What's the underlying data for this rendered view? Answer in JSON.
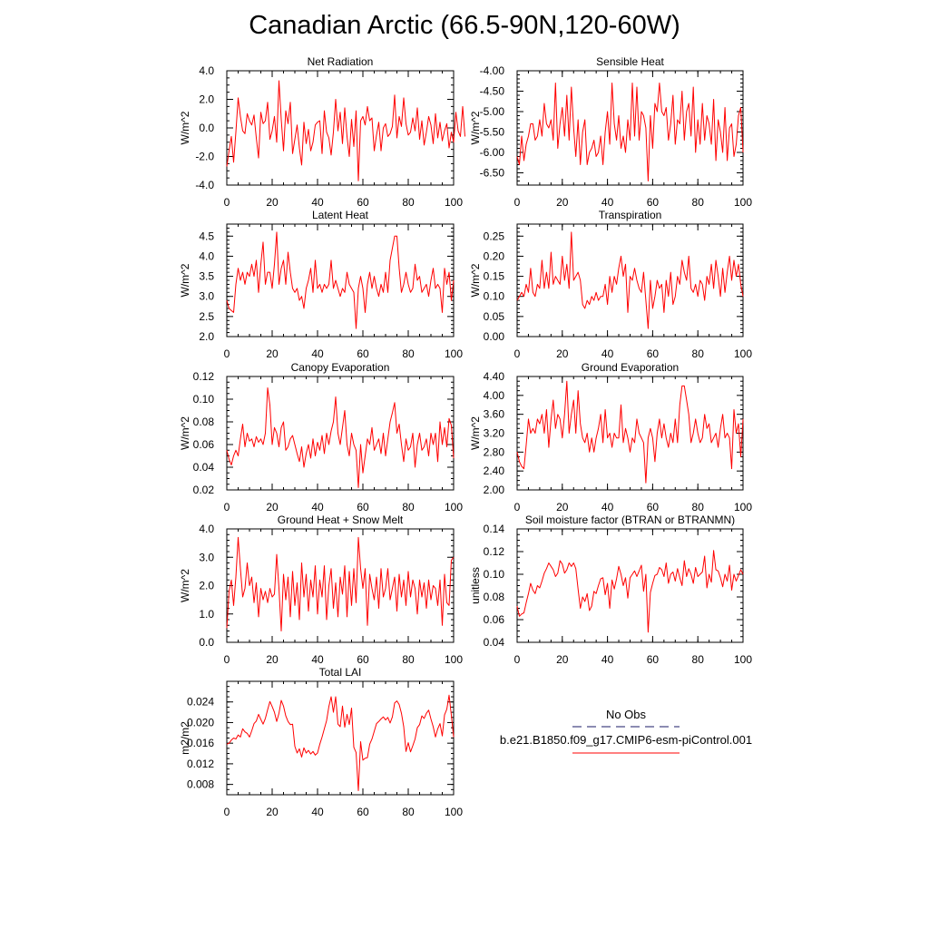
{
  "figure": {
    "title": "Canadian Arctic (66.5-90N,120-60W)",
    "line_color": "#ff0000",
    "obs_color": "#1a1a66"
  },
  "legend": {
    "obs_label": "No Obs",
    "model_label": "b.e21.B1850.f09_g17.CMIP6-esm-piControl.001"
  },
  "chart_data": [
    {
      "type": "line",
      "title": "Net Radiation",
      "ylabel": "W/m^2",
      "xlim": [
        0,
        100
      ],
      "ylim": [
        -4.0,
        4.0
      ],
      "xticks": [
        0,
        20,
        40,
        60,
        80,
        100
      ],
      "yticks": [
        -4.0,
        -2.0,
        0.0,
        2.0,
        4.0
      ],
      "ytick_labels": [
        "-4.0",
        "-2.0",
        "0.0",
        "2.0",
        "4.0"
      ],
      "yminor": 0.5,
      "values": [
        -2.7,
        -1.6,
        -0.6,
        -2.4,
        -0.3,
        2.1,
        0.8,
        -0.2,
        -0.4,
        1.0,
        0.5,
        0.2,
        0.9,
        -0.7,
        -2.1,
        1.1,
        0.3,
        0.5,
        1.8,
        -0.8,
        -0.2,
        0.8,
        -1.0,
        3.3,
        0.6,
        -1.6,
        1.2,
        0.3,
        1.8,
        -1.8,
        -0.8,
        0.2,
        -1.4,
        -2.6,
        0.4,
        -1.1,
        -0.1,
        -1.6,
        -1.0,
        0.2,
        0.4,
        0.5,
        -1.8,
        1.2,
        -0.3,
        -0.7,
        -1.9,
        -0.3,
        2.0,
        -0.2,
        1.1,
        -1.1,
        1.4,
        -0.6,
        -2.0,
        0.6,
        -1.3,
        1.2,
        -3.7,
        0.5,
        0.8,
        0.2,
        1.5,
        0.5,
        0.7,
        -1.6,
        -0.5,
        0.4,
        -1.6,
        0.0,
        0.3,
        -0.6,
        -0.4,
        0.1,
        2.3,
        -0.7,
        0.8,
        0.1,
        2.1,
        0.3,
        -0.5,
        -0.3,
        0.7,
        -0.2,
        1.4,
        -0.8,
        0.5,
        -1.2,
        -0.3,
        0.8,
        0.2,
        -1.1,
        1.0,
        -0.7,
        0.4,
        -0.9,
        -0.2,
        0.3,
        -1.4,
        -0.3,
        -1.0,
        1.1,
        -0.2,
        -0.6,
        1.5,
        -0.6
      ]
    },
    {
      "type": "line",
      "title": "Sensible Heat",
      "ylabel": "W/m^2",
      "xlim": [
        0,
        100
      ],
      "ylim": [
        -6.8,
        -4.0
      ],
      "xticks": [
        0,
        20,
        40,
        60,
        80,
        100
      ],
      "yticks": [
        -6.5,
        -6.0,
        -5.5,
        -5.0,
        -4.5,
        -4.0
      ],
      "ytick_labels": [
        "-6.50",
        "-6.00",
        "-5.50",
        "-5.00",
        "-4.50",
        "-4.00"
      ],
      "yminor": 0.1,
      "values": [
        -6.1,
        -6.3,
        -5.6,
        -6.2,
        -5.8,
        -5.6,
        -5.3,
        -5.3,
        -5.7,
        -5.6,
        -5.2,
        -5.6,
        -4.8,
        -5.3,
        -5.4,
        -5.2,
        -5.7,
        -4.3,
        -5.9,
        -5.3,
        -4.9,
        -5.6,
        -4.6,
        -5.7,
        -4.4,
        -5.4,
        -6.1,
        -5.2,
        -6.3,
        -5.5,
        -5.2,
        -6.3,
        -6.0,
        -5.9,
        -5.7,
        -6.1,
        -6.0,
        -5.6,
        -6.3,
        -5.5,
        -5.0,
        -5.8,
        -4.3,
        -5.3,
        -5.7,
        -5.1,
        -5.9,
        -5.6,
        -6.0,
        -5.2,
        -5.7,
        -4.3,
        -5.6,
        -4.4,
        -5.7,
        -5.0,
        -5.1,
        -5.4,
        -6.7,
        -5.1,
        -5.9,
        -4.8,
        -5.0,
        -4.3,
        -5.0,
        -5.1,
        -4.9,
        -5.7,
        -5.3,
        -4.6,
        -5.8,
        -5.2,
        -5.3,
        -4.5,
        -5.7,
        -5.0,
        -4.8,
        -5.6,
        -4.4,
        -6.0,
        -5.2,
        -5.8,
        -4.8,
        -5.7,
        -5.1,
        -5.3,
        -5.8,
        -4.7,
        -6.2,
        -5.2,
        -5.5,
        -6.0,
        -4.9,
        -6.2,
        -5.4,
        -5.3,
        -6.1,
        -5.8,
        -5.1,
        -4.9,
        -6.0
      ]
    },
    {
      "type": "line",
      "title": "Latent Heat",
      "ylabel": "W/m^2",
      "xlim": [
        0,
        100
      ],
      "ylim": [
        2.0,
        4.8
      ],
      "xticks": [
        0,
        20,
        40,
        60,
        80,
        100
      ],
      "yticks": [
        2.0,
        2.5,
        3.0,
        3.5,
        4.0,
        4.5
      ],
      "ytick_labels": [
        "2.0",
        "2.5",
        "3.0",
        "3.5",
        "4.0",
        "4.5"
      ],
      "yminor": 0.1,
      "values": [
        2.9,
        2.7,
        2.65,
        2.6,
        3.3,
        3.7,
        3.4,
        3.6,
        3.3,
        3.6,
        3.5,
        3.8,
        3.5,
        3.9,
        3.1,
        3.8,
        4.35,
        3.3,
        3.6,
        3.6,
        3.2,
        3.8,
        4.6,
        3.3,
        3.7,
        3.9,
        3.3,
        4.1,
        3.6,
        3.2,
        3.1,
        3.2,
        2.9,
        3.0,
        2.7,
        3.2,
        3.4,
        3.7,
        3.1,
        3.9,
        3.2,
        3.3,
        3.1,
        3.3,
        3.2,
        3.3,
        3.9,
        3.2,
        3.4,
        3.2,
        3.0,
        3.2,
        3.1,
        3.6,
        3.3,
        3.2,
        3.1,
        2.2,
        3.2,
        3.5,
        3.2,
        2.6,
        3.3,
        3.6,
        3.2,
        3.5,
        3.2,
        3.0,
        3.3,
        3.1,
        3.6,
        3.1,
        3.9,
        4.2,
        4.5,
        4.5,
        3.7,
        3.1,
        3.3,
        3.6,
        3.3,
        3.1,
        3.2,
        3.8,
        3.4,
        3.5,
        3.1,
        3.2,
        3.3,
        3.0,
        3.4,
        3.7,
        3.2,
        3.3,
        3.2,
        2.6,
        3.7,
        3.3,
        3.6,
        2.9,
        3.4
      ]
    },
    {
      "type": "line",
      "title": "Transpiration",
      "ylabel": "W/m^2",
      "xlim": [
        0,
        100
      ],
      "ylim": [
        0.0,
        0.28
      ],
      "xticks": [
        0,
        20,
        40,
        60,
        80,
        100
      ],
      "yticks": [
        0.0,
        0.05,
        0.1,
        0.15,
        0.2,
        0.25
      ],
      "ytick_labels": [
        "0.00",
        "0.05",
        "0.10",
        "0.15",
        "0.20",
        "0.25"
      ],
      "yminor": 0.01,
      "values": [
        0.09,
        0.1,
        0.11,
        0.1,
        0.13,
        0.11,
        0.17,
        0.11,
        0.1,
        0.13,
        0.12,
        0.19,
        0.12,
        0.16,
        0.12,
        0.21,
        0.13,
        0.15,
        0.14,
        0.13,
        0.2,
        0.14,
        0.18,
        0.12,
        0.26,
        0.14,
        0.15,
        0.16,
        0.14,
        0.08,
        0.07,
        0.09,
        0.08,
        0.1,
        0.09,
        0.11,
        0.09,
        0.1,
        0.1,
        0.13,
        0.08,
        0.15,
        0.11,
        0.15,
        0.13,
        0.17,
        0.2,
        0.15,
        0.18,
        0.06,
        0.15,
        0.14,
        0.17,
        0.14,
        0.12,
        0.11,
        0.16,
        0.09,
        0.02,
        0.14,
        0.07,
        0.1,
        0.14,
        0.12,
        0.13,
        0.06,
        0.14,
        0.1,
        0.16,
        0.08,
        0.1,
        0.15,
        0.13,
        0.19,
        0.16,
        0.14,
        0.2,
        0.12,
        0.11,
        0.13,
        0.1,
        0.14,
        0.13,
        0.09,
        0.15,
        0.13,
        0.18,
        0.12,
        0.19,
        0.15,
        0.1,
        0.17,
        0.11,
        0.16,
        0.2,
        0.14,
        0.19,
        0.15,
        0.18,
        0.13,
        0.1
      ]
    },
    {
      "type": "line",
      "title": "Canopy Evaporation",
      "ylabel": "W/m^2",
      "xlim": [
        0,
        100
      ],
      "ylim": [
        0.02,
        0.12
      ],
      "xticks": [
        0,
        20,
        40,
        60,
        80,
        100
      ],
      "yticks": [
        0.02,
        0.04,
        0.06,
        0.08,
        0.1,
        0.12
      ],
      "ytick_labels": [
        "0.02",
        "0.04",
        "0.06",
        "0.08",
        "0.10",
        "0.12"
      ],
      "yminor": 0.005,
      "values": [
        0.055,
        0.047,
        0.042,
        0.05,
        0.055,
        0.05,
        0.065,
        0.078,
        0.058,
        0.07,
        0.063,
        0.065,
        0.058,
        0.067,
        0.062,
        0.065,
        0.06,
        0.07,
        0.11,
        0.095,
        0.06,
        0.075,
        0.07,
        0.058,
        0.075,
        0.08,
        0.055,
        0.058,
        0.065,
        0.068,
        0.06,
        0.052,
        0.045,
        0.058,
        0.04,
        0.052,
        0.06,
        0.048,
        0.065,
        0.05,
        0.062,
        0.055,
        0.068,
        0.052,
        0.07,
        0.06,
        0.072,
        0.08,
        0.102,
        0.07,
        0.06,
        0.075,
        0.09,
        0.06,
        0.05,
        0.07,
        0.06,
        0.055,
        0.022,
        0.06,
        0.035,
        0.05,
        0.065,
        0.06,
        0.075,
        0.055,
        0.06,
        0.065,
        0.052,
        0.07,
        0.05,
        0.065,
        0.08,
        0.088,
        0.097,
        0.07,
        0.078,
        0.06,
        0.045,
        0.065,
        0.055,
        0.058,
        0.07,
        0.04,
        0.06,
        0.07,
        0.055,
        0.058,
        0.065,
        0.05,
        0.07,
        0.06,
        0.07,
        0.045,
        0.08,
        0.06,
        0.075,
        0.058,
        0.083,
        0.077,
        0.048
      ]
    },
    {
      "type": "line",
      "title": "Ground Evaporation",
      "ylabel": "W/m^2",
      "xlim": [
        0,
        100
      ],
      "ylim": [
        2.0,
        4.4
      ],
      "xticks": [
        0,
        20,
        40,
        60,
        80,
        100
      ],
      "yticks": [
        2.0,
        2.4,
        2.8,
        3.2,
        3.6,
        4.0,
        4.4
      ],
      "ytick_labels": [
        "2.00",
        "2.40",
        "2.80",
        "3.20",
        "3.60",
        "4.00",
        "4.40"
      ],
      "yminor": 0.1,
      "values": [
        2.8,
        2.6,
        2.5,
        2.45,
        2.95,
        3.5,
        3.2,
        3.3,
        3.2,
        3.5,
        3.4,
        3.6,
        3.2,
        3.7,
        2.9,
        3.5,
        3.9,
        3.3,
        3.6,
        3.5,
        3.1,
        3.6,
        4.3,
        3.2,
        3.6,
        3.9,
        3.2,
        4.1,
        3.4,
        3.1,
        3.0,
        3.2,
        2.8,
        3.1,
        2.8,
        3.1,
        3.3,
        3.6,
        3.0,
        3.7,
        3.1,
        3.2,
        2.9,
        3.2,
        3.1,
        3.1,
        3.8,
        3.0,
        3.3,
        3.1,
        2.8,
        3.1,
        3.0,
        3.5,
        3.2,
        3.1,
        3.0,
        2.15,
        3.1,
        3.3,
        3.1,
        2.6,
        3.2,
        3.5,
        3.1,
        3.4,
        3.1,
        2.9,
        3.2,
        3.0,
        3.5,
        3.0,
        3.8,
        4.2,
        4.2,
        3.9,
        3.6,
        3.0,
        3.2,
        3.5,
        3.2,
        3.0,
        3.1,
        3.6,
        3.3,
        3.4,
        3.0,
        3.1,
        3.2,
        2.9,
        3.3,
        3.6,
        3.1,
        3.2,
        3.1,
        2.45,
        3.7,
        3.2,
        3.4,
        2.7,
        3.5
      ]
    },
    {
      "type": "line",
      "title": "Ground Heat + Snow Melt",
      "ylabel": "W/m^2",
      "xlim": [
        0,
        100
      ],
      "ylim": [
        0.0,
        4.0
      ],
      "xticks": [
        0,
        20,
        40,
        60,
        80,
        100
      ],
      "yticks": [
        0.0,
        1.0,
        2.0,
        3.0,
        4.0
      ],
      "ytick_labels": [
        "0.0",
        "1.0",
        "2.0",
        "3.0",
        "4.0"
      ],
      "yminor": 0.2,
      "values": [
        0.5,
        1.8,
        2.2,
        1.3,
        2.3,
        3.7,
        2.6,
        1.6,
        1.9,
        2.8,
        2.0,
        2.3,
        1.4,
        2.1,
        0.9,
        1.9,
        1.5,
        1.8,
        1.4,
        1.9,
        1.6,
        1.7,
        3.1,
        1.9,
        0.4,
        2.4,
        1.5,
        2.3,
        0.9,
        2.5,
        1.3,
        2.1,
        0.8,
        2.8,
        1.6,
        2.4,
        1.1,
        2.2,
        1.6,
        2.7,
        1.0,
        2.2,
        1.6,
        2.7,
        0.8,
        2.0,
        2.6,
        1.2,
        2.1,
        0.9,
        2.3,
        1.7,
        2.7,
        0.9,
        2.5,
        1.3,
        2.6,
        1.4,
        3.7,
        2.6,
        1.9,
        2.6,
        0.6,
        2.4,
        1.9,
        1.5,
        2.3,
        1.2,
        2.6,
        1.6,
        1.9,
        2.6,
        1.5,
        1.9,
        2.3,
        1.1,
        2.4,
        1.6,
        2.2,
        1.3,
        2.5,
        1.6,
        2.2,
        1.9,
        1.0,
        2.2,
        1.6,
        2.1,
        1.2,
        2.2,
        1.5,
        2.0,
        1.9,
        1.3,
        2.2,
        0.6,
        2.4,
        1.4,
        1.3,
        2.9,
        3.0
      ]
    },
    {
      "type": "line",
      "title": "Soil moisture factor (BTRAN or BTRANMN)",
      "ylabel": "unitless",
      "xlim": [
        0,
        100
      ],
      "ylim": [
        0.04,
        0.14
      ],
      "xticks": [
        0,
        20,
        40,
        60,
        80,
        100
      ],
      "yticks": [
        0.04,
        0.06,
        0.08,
        0.1,
        0.12,
        0.14
      ],
      "ytick_labels": [
        "0.04",
        "0.06",
        "0.08",
        "0.10",
        "0.12",
        "0.14"
      ],
      "yminor": 0.005,
      "values": [
        0.072,
        0.063,
        0.065,
        0.066,
        0.075,
        0.083,
        0.092,
        0.086,
        0.083,
        0.09,
        0.088,
        0.094,
        0.101,
        0.105,
        0.11,
        0.107,
        0.104,
        0.098,
        0.101,
        0.112,
        0.109,
        0.101,
        0.104,
        0.11,
        0.107,
        0.11,
        0.105,
        0.087,
        0.07,
        0.08,
        0.076,
        0.083,
        0.068,
        0.072,
        0.085,
        0.083,
        0.09,
        0.096,
        0.097,
        0.082,
        0.092,
        0.07,
        0.095,
        0.087,
        0.096,
        0.107,
        0.1,
        0.09,
        0.097,
        0.079,
        0.097,
        0.1,
        0.103,
        0.098,
        0.103,
        0.108,
        0.085,
        0.1,
        0.049,
        0.084,
        0.092,
        0.099,
        0.1,
        0.106,
        0.104,
        0.098,
        0.11,
        0.092,
        0.1,
        0.102,
        0.094,
        0.105,
        0.097,
        0.09,
        0.112,
        0.098,
        0.105,
        0.1,
        0.092,
        0.106,
        0.098,
        0.1,
        0.102,
        0.116,
        0.088,
        0.1,
        0.093,
        0.121,
        0.104,
        0.103,
        0.097,
        0.089,
        0.1,
        0.094,
        0.108,
        0.086,
        0.1,
        0.094,
        0.099,
        0.104,
        0.1
      ]
    },
    {
      "type": "line",
      "title": "Total LAI",
      "ylabel": "m2/m2",
      "xlim": [
        0,
        100
      ],
      "ylim": [
        0.006,
        0.028
      ],
      "xticks": [
        0,
        20,
        40,
        60,
        80,
        100
      ],
      "yticks": [
        0.008,
        0.012,
        0.016,
        0.02,
        0.024
      ],
      "ytick_labels": [
        "0.008",
        "0.012",
        "0.016",
        "0.020",
        "0.024"
      ],
      "yminor": 0.001,
      "values": [
        0.0158,
        0.016,
        0.0166,
        0.017,
        0.0168,
        0.0176,
        0.0172,
        0.0188,
        0.0182,
        0.0179,
        0.0172,
        0.0184,
        0.0198,
        0.0203,
        0.0216,
        0.0206,
        0.0197,
        0.0208,
        0.0225,
        0.0241,
        0.0231,
        0.022,
        0.0202,
        0.0218,
        0.0243,
        0.0232,
        0.0213,
        0.0202,
        0.0196,
        0.0197,
        0.0154,
        0.0141,
        0.0149,
        0.0133,
        0.0151,
        0.0141,
        0.0146,
        0.0139,
        0.0144,
        0.0137,
        0.0141,
        0.0158,
        0.0172,
        0.0188,
        0.0204,
        0.0231,
        0.025,
        0.022,
        0.025,
        0.0197,
        0.0192,
        0.0232,
        0.0191,
        0.0216,
        0.0196,
        0.0228,
        0.0152,
        0.0142,
        0.0068,
        0.0163,
        0.0127,
        0.0131,
        0.0132,
        0.0158,
        0.0168,
        0.0183,
        0.0198,
        0.0202,
        0.0207,
        0.0211,
        0.0205,
        0.021,
        0.0199,
        0.0211,
        0.0238,
        0.0242,
        0.0235,
        0.0218,
        0.0192,
        0.0144,
        0.0161,
        0.0143,
        0.0155,
        0.0168,
        0.019,
        0.0196,
        0.0213,
        0.0208,
        0.0218,
        0.0224,
        0.0207,
        0.0192,
        0.0172,
        0.0188,
        0.0198,
        0.0174,
        0.0215,
        0.0226,
        0.0253,
        0.0214,
        0.0172
      ]
    }
  ]
}
